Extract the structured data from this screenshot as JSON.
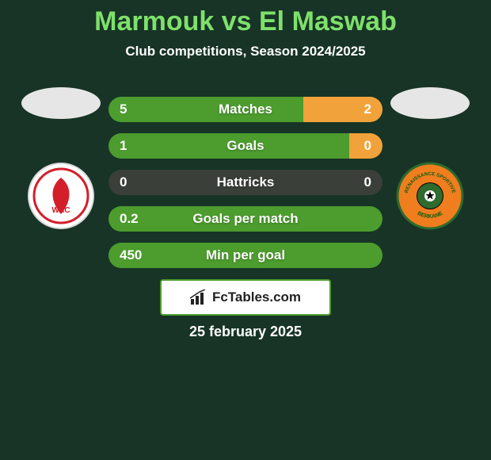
{
  "background_color": "#173426",
  "title": {
    "text": "Marmouk vs El Maswab",
    "color": "#7fe06b",
    "fontsize": 34
  },
  "subtitle": {
    "text": "Club competitions, Season 2024/2025",
    "color": "#ffffff",
    "fontsize": 17
  },
  "silhouette": {
    "width": 100,
    "height": 40,
    "color": "#e6e6e6"
  },
  "player_left": {
    "club_name": "WAC",
    "club_bg": "#ffffff",
    "club_border": "#d9d9d9",
    "club_accent": "#d31f2a",
    "club_text_top": "نادي",
    "club_text_side": "الوداد الرياضي"
  },
  "player_right": {
    "club_name": "RENAISSANCE SPORTIVE BERKANE",
    "club_bg": "#f07d1e",
    "club_border": "#2e6b2e",
    "club_accent": "#ffffff",
    "club_text_color": "#115e11"
  },
  "bars": {
    "left_color": "#4c9c2e",
    "right_color": "#f2a23a",
    "neutral_color": "#3a3f3a",
    "text_color": "#ffffff",
    "rows": [
      {
        "label": "Matches",
        "left": "5",
        "right": "2",
        "left_pct": 71,
        "right_pct": 29,
        "left_bg": "left",
        "right_bg": "right"
      },
      {
        "label": "Goals",
        "left": "1",
        "right": "0",
        "left_pct": 88,
        "right_pct": 12,
        "left_bg": "left",
        "right_bg": "right"
      },
      {
        "label": "Hattricks",
        "left": "0",
        "right": "0",
        "left_pct": 50,
        "right_pct": 50,
        "left_bg": "neutral",
        "right_bg": "neutral"
      },
      {
        "label": "Goals per match",
        "left": "0.2",
        "right": "",
        "left_pct": 100,
        "right_pct": 0,
        "left_bg": "left",
        "right_bg": "right"
      },
      {
        "label": "Min per goal",
        "left": "450",
        "right": "",
        "left_pct": 100,
        "right_pct": 0,
        "left_bg": "left",
        "right_bg": "right"
      }
    ]
  },
  "brand": {
    "text": "FcTables.com",
    "border_color": "#4c9c2e",
    "bg": "#ffffff",
    "icon_color": "#222222"
  },
  "footer_date": {
    "text": "25 february 2025",
    "color": "#ffffff"
  }
}
